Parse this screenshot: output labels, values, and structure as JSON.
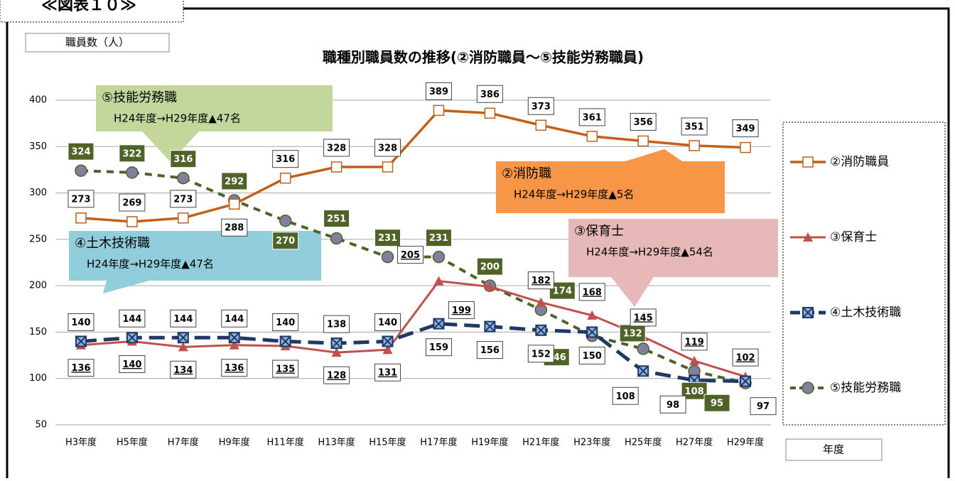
{
  "header": "≪図表１０≫",
  "chart_data": {
    "type": "line",
    "title": "職種別職員数の推移(②消防職員～⑤技能労務職員)",
    "y_label": "職員数（人）",
    "x_label": "年度",
    "categories": [
      "H3年度",
      "H5年度",
      "H7年度",
      "H9年度",
      "H11年度",
      "H13年度",
      "H15年度",
      "H17年度",
      "H19年度",
      "H21年度",
      "H23年度",
      "H25年度",
      "H27年度",
      "H29年度"
    ],
    "ylim": [
      50,
      400
    ],
    "yticks": [
      50,
      100,
      150,
      200,
      250,
      300,
      350,
      400
    ],
    "grid": true,
    "legend": "right",
    "series": [
      {
        "name": "②消防職員",
        "color": "#c0601a",
        "values": [
          273,
          269,
          273,
          288,
          316,
          328,
          328,
          389,
          386,
          373,
          361,
          356,
          351,
          349
        ]
      },
      {
        "name": "③保育士",
        "color": "#c0504d",
        "values": [
          136,
          140,
          134,
          136,
          135,
          128,
          131,
          205,
          199,
          182,
          168,
          145,
          119,
          102
        ]
      },
      {
        "name": "④土木技術職",
        "color": "#1f3864",
        "values": [
          140,
          144,
          144,
          144,
          140,
          138,
          140,
          159,
          156,
          152,
          150,
          108,
          98,
          97
        ]
      },
      {
        "name": "⑤技能労務職",
        "color": "#4f6228",
        "values": [
          324,
          322,
          316,
          292,
          270,
          251,
          231,
          231,
          200,
          174,
          146,
          132,
          108,
          95
        ]
      }
    ],
    "annotations": [
      {
        "title": "⑤技能労務職",
        "text": "H24年度→H29年度▲47名"
      },
      {
        "title": "②消防職",
        "text": "H24年度→H29年度▲5名"
      },
      {
        "title": "③保育士",
        "text": "H24年度→H29年度▲54名"
      },
      {
        "title": "④土木技術職",
        "text": "H24年度→H29年度▲47名"
      }
    ]
  }
}
